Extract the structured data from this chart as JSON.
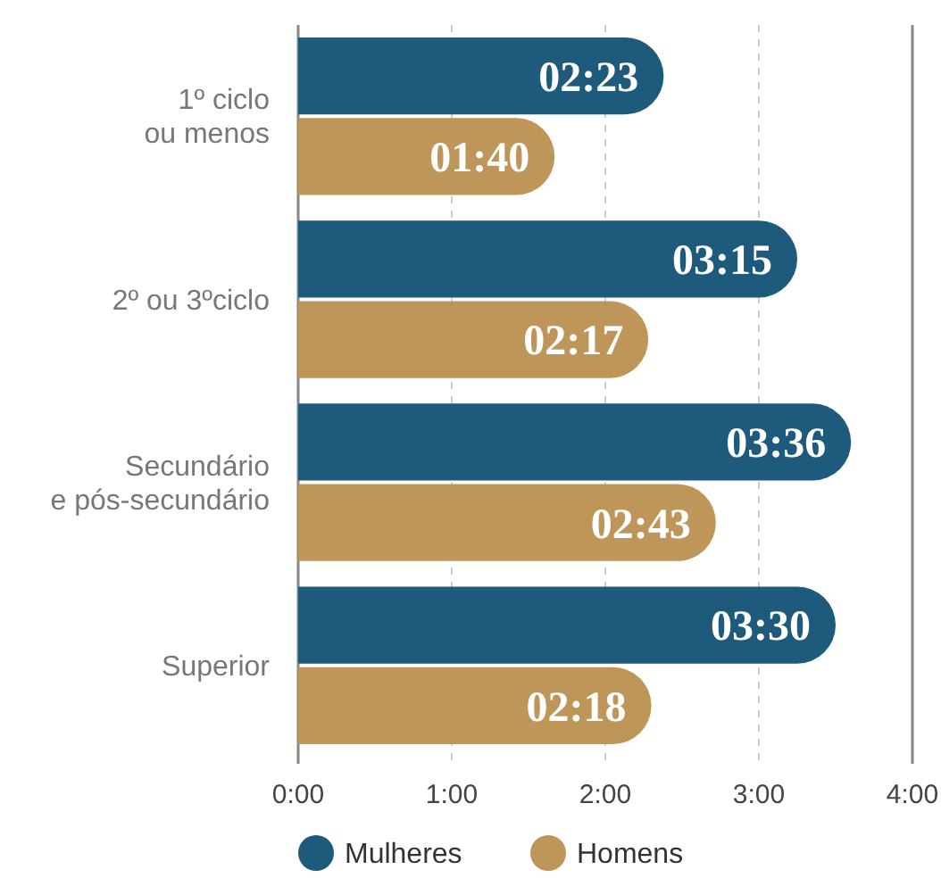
{
  "chart_data": {
    "type": "bar",
    "orientation": "horizontal",
    "categories": [
      "1º ciclo\nou menos",
      "2º ou 3ºciclo",
      "Secundário\ne pós-secundário",
      "Superior"
    ],
    "series": [
      {
        "name": "Mulheres",
        "color": "#1d5a7c",
        "values": [
          2.38,
          3.25,
          3.6,
          3.5
        ],
        "value_labels": [
          "02:23",
          "03:15",
          "03:36",
          "03:30"
        ]
      },
      {
        "name": "Homens",
        "color": "#be965a",
        "values": [
          1.67,
          2.28,
          2.72,
          2.3
        ],
        "value_labels": [
          "01:40",
          "02:17",
          "02:43",
          "02:18"
        ]
      }
    ],
    "xlim": [
      0,
      4
    ],
    "xticks": [
      {
        "value": 0,
        "label": "0:00"
      },
      {
        "value": 1,
        "label": "1:00"
      },
      {
        "value": 2,
        "label": "2:00"
      },
      {
        "value": 3,
        "label": "3:00"
      },
      {
        "value": 4,
        "label": "4:00"
      }
    ],
    "grid": "x",
    "legend": "bottom"
  }
}
